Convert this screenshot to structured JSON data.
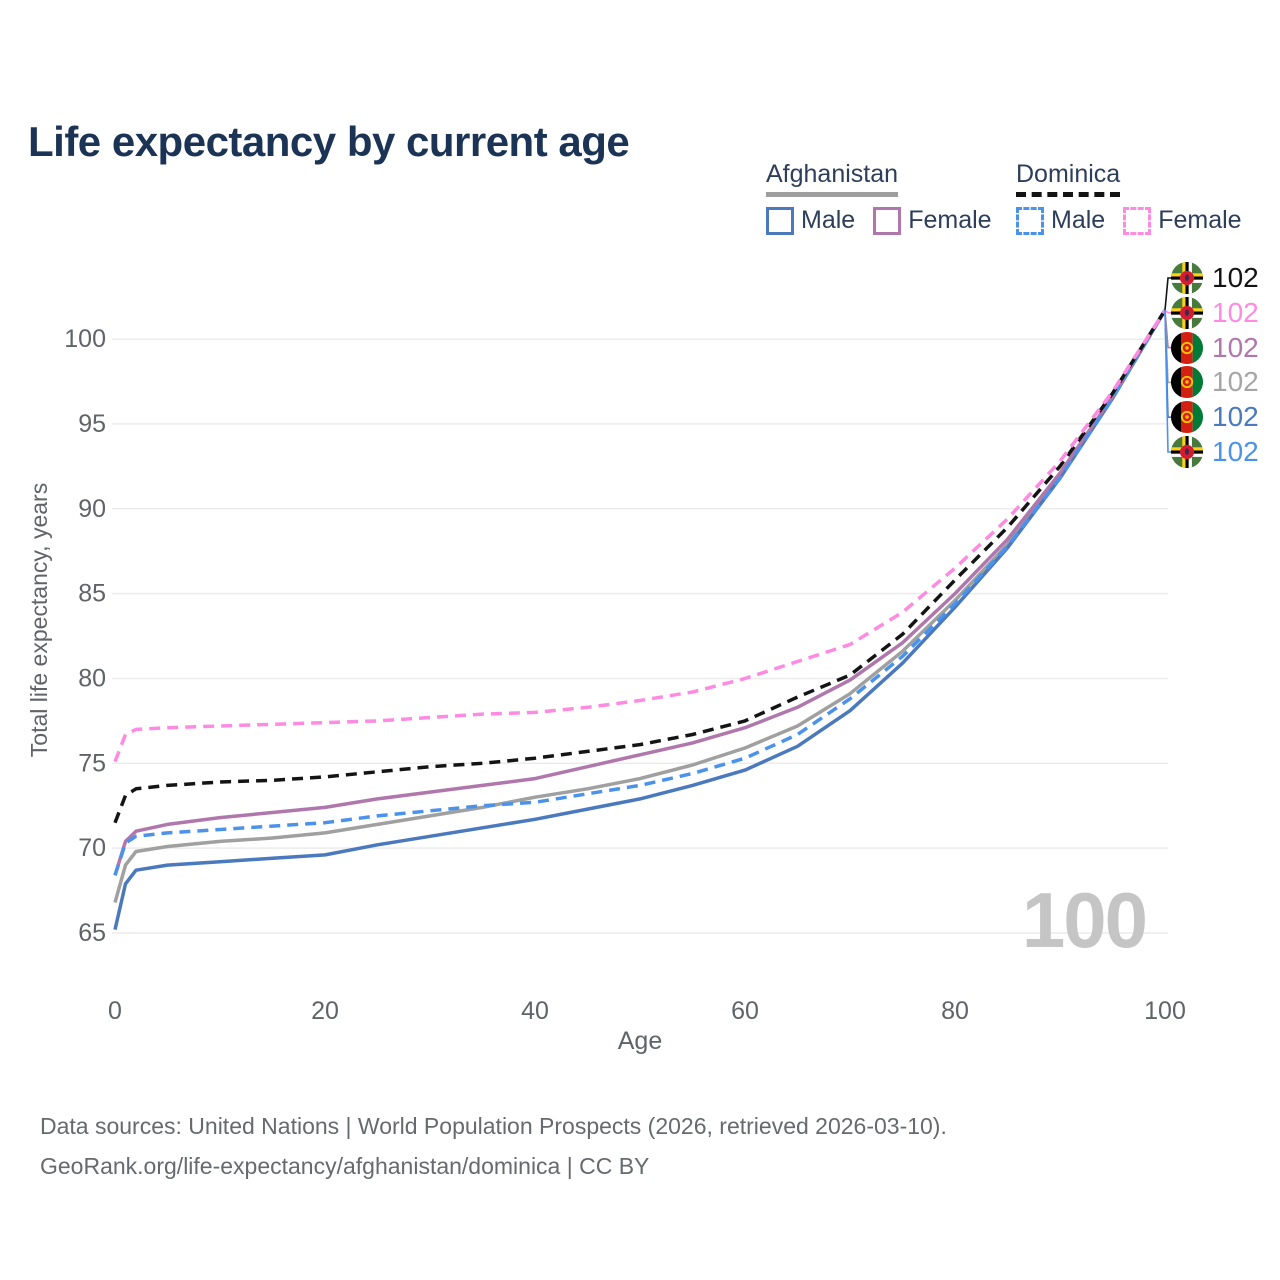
{
  "title": "Life expectancy by current age",
  "legend": {
    "groups": [
      {
        "name": "Afghanistan",
        "line_style": "solid",
        "underline_color": "#9e9e9e",
        "items": [
          {
            "label": "Male",
            "color": "#4b79bd",
            "style": "solid"
          },
          {
            "label": "Female",
            "color": "#b077ad",
            "style": "solid"
          }
        ]
      },
      {
        "name": "Dominica",
        "line_style": "dashed",
        "underline_color": "#141414",
        "items": [
          {
            "label": "Male",
            "color": "#4b93ea",
            "style": "dashed"
          },
          {
            "label": "Female",
            "color": "#fe8be1",
            "style": "dashed"
          }
        ]
      }
    ]
  },
  "chart_data": {
    "type": "line",
    "title": "Life expectancy by current age",
    "xlabel": "Age",
    "ylabel": "Total life expectancy, years",
    "xlim": [
      0,
      100
    ],
    "ylim": [
      65,
      102
    ],
    "x_ticks": [
      0,
      20,
      40,
      60,
      80,
      100
    ],
    "y_ticks": [
      65,
      70,
      75,
      80,
      85,
      90,
      95,
      100
    ],
    "grid": "horizontal",
    "legend_position": "top-right",
    "hover_age_indicator": "100",
    "x": [
      0,
      1,
      2,
      5,
      10,
      15,
      20,
      25,
      30,
      35,
      40,
      45,
      50,
      55,
      60,
      65,
      70,
      75,
      80,
      85,
      90,
      95,
      100
    ],
    "series": [
      {
        "name": "Afghanistan",
        "sex": "both",
        "style": "solid",
        "color": "#a0a0a0",
        "country": "afghanistan",
        "end_value": 102,
        "values": [
          66.8,
          69.0,
          69.8,
          70.1,
          70.4,
          70.6,
          70.9,
          71.4,
          71.9,
          72.4,
          73.0,
          73.5,
          74.1,
          74.9,
          75.9,
          77.2,
          79.1,
          81.6,
          84.6,
          87.9,
          91.9,
          96.5,
          101.7
        ]
      },
      {
        "name": "Afghanistan Male",
        "sex": "male",
        "style": "solid",
        "color": "#4b79bd",
        "country": "afghanistan",
        "end_value": 102,
        "values": [
          65.2,
          67.9,
          68.7,
          69.0,
          69.2,
          69.4,
          69.6,
          70.2,
          70.7,
          71.2,
          71.7,
          72.3,
          72.9,
          73.7,
          74.6,
          76.0,
          78.1,
          80.9,
          84.2,
          87.7,
          91.8,
          96.5,
          101.7
        ]
      },
      {
        "name": "Afghanistan Female",
        "sex": "female",
        "style": "solid",
        "color": "#b077ad",
        "country": "afghanistan",
        "end_value": 102,
        "values": [
          68.4,
          70.4,
          71.0,
          71.4,
          71.8,
          72.1,
          72.4,
          72.9,
          73.3,
          73.7,
          74.1,
          74.8,
          75.5,
          76.2,
          77.1,
          78.3,
          79.9,
          82.1,
          85.0,
          88.2,
          92.1,
          96.6,
          101.7
        ]
      },
      {
        "name": "Dominica Male",
        "sex": "male",
        "style": "dashed",
        "color": "#4b93ea",
        "country": "dominica",
        "end_value": 102,
        "values": [
          68.4,
          70.3,
          70.7,
          70.9,
          71.1,
          71.3,
          71.5,
          71.9,
          72.2,
          72.5,
          72.7,
          73.2,
          73.7,
          74.4,
          75.3,
          76.7,
          78.8,
          81.3,
          84.4,
          87.8,
          91.8,
          96.5,
          101.7
        ]
      },
      {
        "name": "Dominica",
        "sex": "both",
        "style": "dashed",
        "color": "#141414",
        "country": "dominica",
        "end_value": 102,
        "values": [
          71.5,
          73.1,
          73.5,
          73.7,
          73.9,
          74.0,
          74.2,
          74.5,
          74.8,
          75.0,
          75.3,
          75.7,
          76.1,
          76.7,
          77.5,
          78.9,
          80.2,
          82.6,
          85.8,
          88.9,
          92.5,
          96.8,
          101.7
        ]
      },
      {
        "name": "Dominica Female",
        "sex": "female",
        "style": "dashed",
        "color": "#fe8be1",
        "country": "dominica",
        "end_value": 102,
        "values": [
          75.1,
          76.7,
          77.0,
          77.1,
          77.2,
          77.3,
          77.4,
          77.5,
          77.7,
          77.9,
          78.0,
          78.3,
          78.7,
          79.2,
          80.0,
          81.0,
          82.0,
          83.9,
          86.5,
          89.4,
          92.8,
          96.9,
          101.7
        ]
      }
    ],
    "end_labels": [
      {
        "value": "102",
        "color": "#141414",
        "flag": "dominica",
        "series": "Dominica"
      },
      {
        "value": "102",
        "color": "#fe8be1",
        "flag": "dominica",
        "series": "Dominica Female"
      },
      {
        "value": "102",
        "color": "#b077ad",
        "flag": "afghanistan",
        "series": "Afghanistan Female"
      },
      {
        "value": "102",
        "color": "#a6a6a6",
        "flag": "afghanistan",
        "series": "Afghanistan"
      },
      {
        "value": "102",
        "color": "#4b79bd",
        "flag": "afghanistan",
        "series": "Afghanistan Male"
      },
      {
        "value": "102",
        "color": "#4b93ea",
        "flag": "dominica",
        "series": "Dominica Male"
      }
    ]
  },
  "footer": {
    "line1": "Data sources: United Nations | World Population Prospects (2026, retrieved 2026-03-10).",
    "line2": "GeoRank.org/life-expectancy/afghanistan/dominica | CC BY"
  }
}
